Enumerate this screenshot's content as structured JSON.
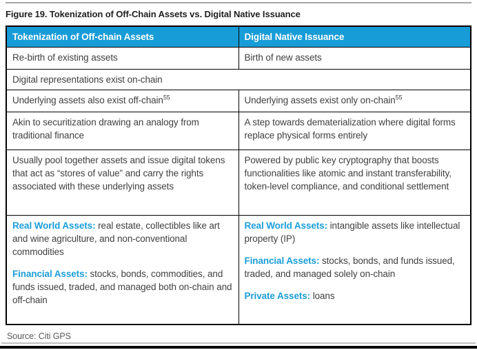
{
  "page": {
    "title": "Figure 19. Tokenization of Off-Chain Assets vs. Digital Native Issuance",
    "source": "Source: Citi GPS"
  },
  "colors": {
    "header_background": "#189cd8",
    "accent_label_text": "#1b9dd9",
    "body_text": "#404040",
    "source_text": "#595959",
    "rule_gray": "#a6a6a6",
    "border_black": "#000000"
  },
  "table": {
    "header": {
      "left": "Tokenization of Off-chain Assets",
      "right": "Digital Native Issuance"
    },
    "row1": {
      "left": "Re-birth of existing assets",
      "right": "Birth of new assets"
    },
    "row2": {
      "merged": "Digital representations exist on-chain"
    },
    "row3": {
      "left": "Underlying assets also exist off-chain",
      "left_footnote": "55",
      "right": "Underlying assets exist only on-chain",
      "right_footnote": "55"
    },
    "row4": {
      "left": "Akin to securitization drawing an analogy from traditional finance",
      "right": "A step towards dematerialization where digital forms replace physical forms entirely"
    },
    "row5": {
      "left": "Usually pool together assets and issue digital tokens that act as “stores of value” and carry the rights associated with these underlying assets",
      "right": "Powered by public key cryptography that boosts functionalities like atomic and instant transferability, token-level compliance, and conditional settlement"
    },
    "row6": {
      "left": [
        {
          "label": "Real World Assets:",
          "text": " real estate, collectibles like art and wine agriculture, and non-conventional commodities"
        },
        {
          "label": "Financial Assets:",
          "text": " stocks, bonds, commodities, and funds issued, traded, and managed both on-chain and off-chain"
        }
      ],
      "right": [
        {
          "label": "Real World Assets:",
          "text": " intangible assets like intellectual property (IP)"
        },
        {
          "label": "Financial Assets:",
          "text": " stocks, bonds, and funds issued, traded, and managed solely on-chain"
        },
        {
          "label": "Private Assets:",
          "text": " loans"
        }
      ]
    }
  }
}
